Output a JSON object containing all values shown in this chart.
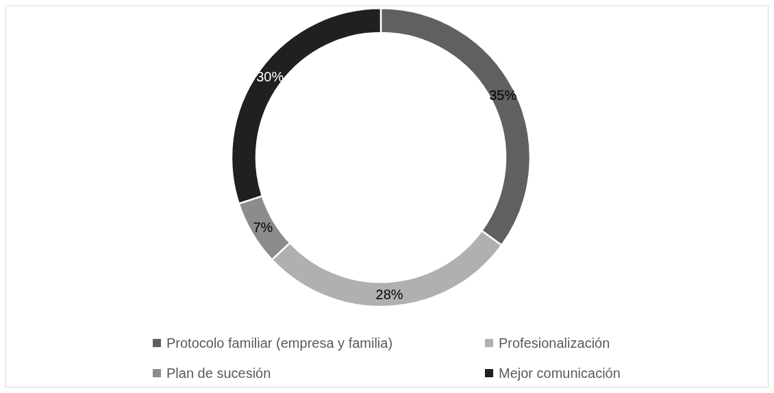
{
  "chart_data": {
    "type": "donut",
    "categories": [
      "Protocolo familiar (empresa y familia)",
      "Profesionalización",
      "Plan de sucesión",
      "Mejor comunicación"
    ],
    "values": [
      35,
      28,
      7,
      30
    ],
    "colors": [
      "#606060",
      "#b0b0b0",
      "#8c8c8c",
      "#202020"
    ],
    "value_labels": [
      "35%",
      "28%",
      "7%",
      "30%"
    ],
    "legend": "bottom"
  }
}
